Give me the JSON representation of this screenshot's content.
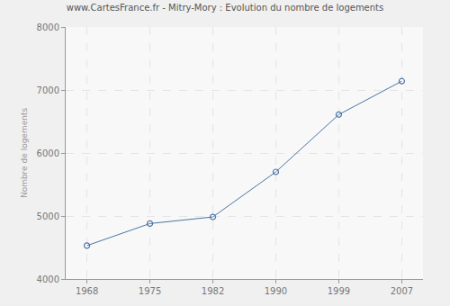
{
  "chart_data": {
    "type": "line",
    "title": "www.CartesFrance.fr - Mitry-Mory : Evolution du nombre de logements",
    "y_label": "Nombre de logements",
    "categories": [
      "1968",
      "1975",
      "1982",
      "1990",
      "1999",
      "2007"
    ],
    "values": [
      4530,
      4880,
      4985,
      5700,
      6610,
      7140
    ],
    "color": "#4d74a3",
    "marker": "open circle",
    "ylim": [
      4000,
      8000
    ],
    "yticks": [
      4000,
      5000,
      6000,
      7000,
      8000
    ],
    "grid": true
  }
}
